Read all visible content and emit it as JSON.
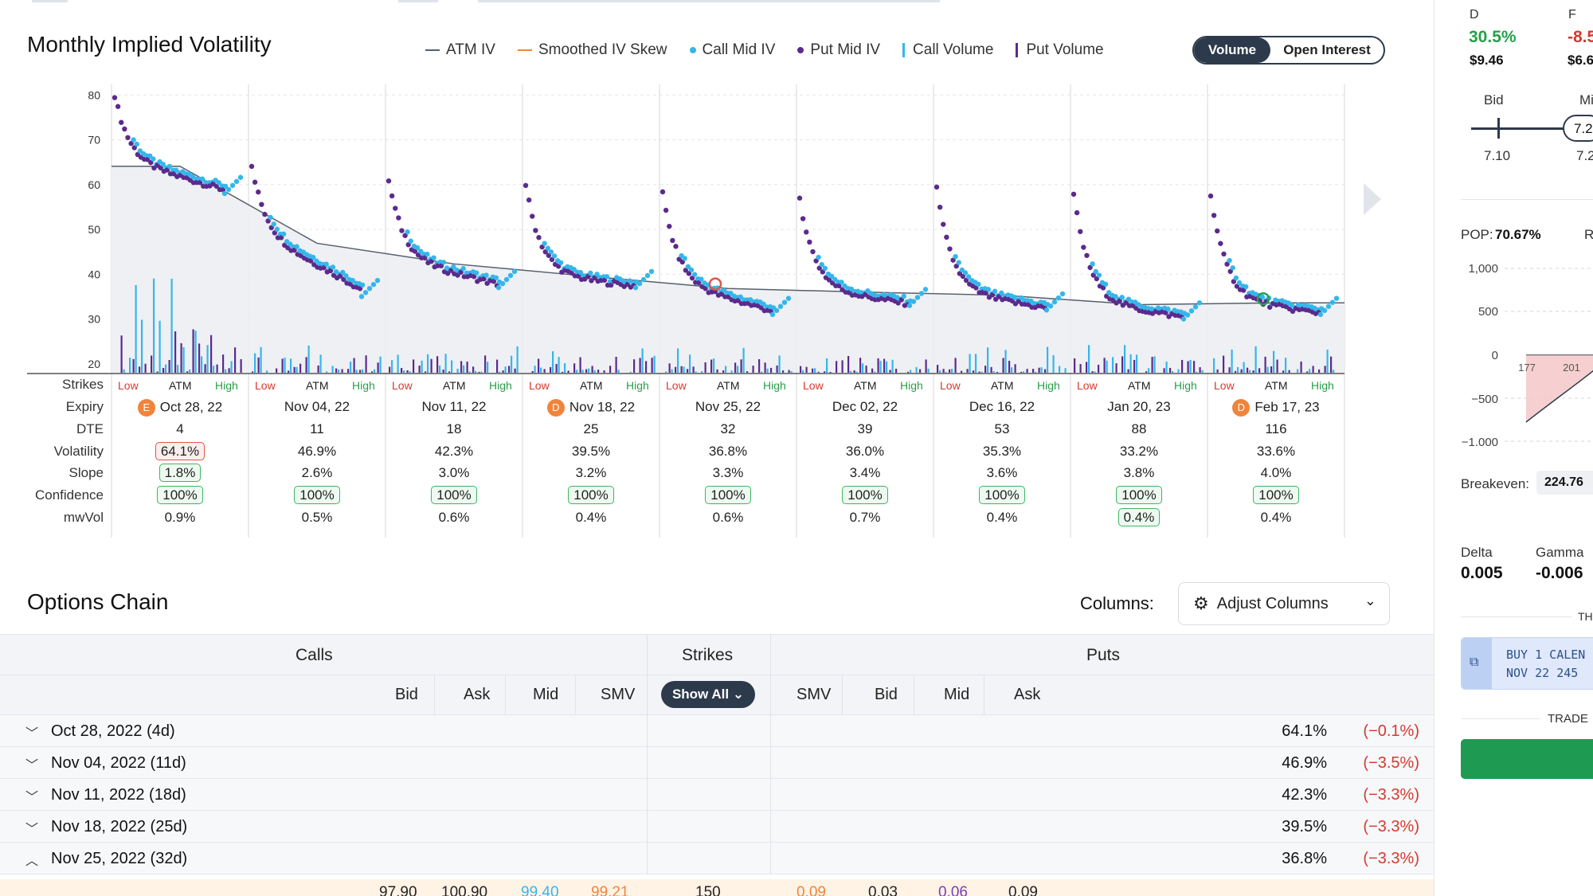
{
  "vol_chart": {
    "title": "Monthly Implied Volatility",
    "legend": [
      {
        "label": "ATM IV",
        "kind": "line",
        "color": "#555f6d"
      },
      {
        "label": "Smoothed IV Skew",
        "kind": "line",
        "color": "#f0843c"
      },
      {
        "label": "Call Mid IV",
        "kind": "dot",
        "color": "#35b6ea"
      },
      {
        "label": "Put Mid IV",
        "kind": "dot",
        "color": "#5b2a8c"
      },
      {
        "label": "Call Volume",
        "kind": "bar",
        "color": "#35b6ea"
      },
      {
        "label": "Put Volume",
        "kind": "bar",
        "color": "#5b2a8c"
      }
    ],
    "toggle": {
      "active": "Volume",
      "inactive": "Open Interest"
    },
    "row_labels": [
      "Strikes",
      "Expiry",
      "DTE",
      "Volatility",
      "Slope",
      "Confidence",
      "mwVol"
    ],
    "strike_labels": {
      "low": "Low",
      "atm": "ATM",
      "high": "High"
    }
  },
  "chart_data": {
    "type": "scatter",
    "y_ticks": [
      20,
      30,
      40,
      50,
      60,
      70,
      80
    ],
    "ylim": [
      18,
      82
    ],
    "atm_iv": [
      64.1,
      46.9,
      42.3,
      39.5,
      36.8,
      36.0,
      35.3,
      33.2,
      33.6
    ],
    "panel_start_iv": [
      80,
      64,
      61,
      60,
      58,
      57,
      59,
      58,
      58
    ],
    "panel_end_iv": [
      58,
      35,
      37,
      37,
      31,
      33,
      32,
      30,
      31
    ]
  },
  "expiries": [
    {
      "expiry": "Oct 28, 22",
      "earn": "E",
      "dte": "4",
      "vol": "64.1%",
      "vol_flag": "red",
      "slope": "1.8%",
      "slope_flag": "green",
      "conf": "100%",
      "mwvol": "0.9%",
      "mw_flag": ""
    },
    {
      "expiry": "Nov 04, 22",
      "earn": "",
      "dte": "11",
      "vol": "46.9%",
      "vol_flag": "",
      "slope": "2.6%",
      "slope_flag": "",
      "conf": "100%",
      "mwvol": "0.5%",
      "mw_flag": ""
    },
    {
      "expiry": "Nov 11, 22",
      "earn": "",
      "dte": "18",
      "vol": "42.3%",
      "vol_flag": "",
      "slope": "3.0%",
      "slope_flag": "",
      "conf": "100%",
      "mwvol": "0.6%",
      "mw_flag": ""
    },
    {
      "expiry": "Nov 18, 22",
      "earn": "D",
      "dte": "25",
      "vol": "39.5%",
      "vol_flag": "",
      "slope": "3.2%",
      "slope_flag": "",
      "conf": "100%",
      "mwvol": "0.4%",
      "mw_flag": ""
    },
    {
      "expiry": "Nov 25, 22",
      "earn": "",
      "dte": "32",
      "vol": "36.8%",
      "vol_flag": "",
      "slope": "3.3%",
      "slope_flag": "",
      "conf": "100%",
      "mwvol": "0.6%",
      "mw_flag": ""
    },
    {
      "expiry": "Dec 02, 22",
      "earn": "",
      "dte": "39",
      "vol": "36.0%",
      "vol_flag": "",
      "slope": "3.4%",
      "slope_flag": "",
      "conf": "100%",
      "mwvol": "0.7%",
      "mw_flag": ""
    },
    {
      "expiry": "Dec 16, 22",
      "earn": "",
      "dte": "53",
      "vol": "35.3%",
      "vol_flag": "",
      "slope": "3.6%",
      "slope_flag": "",
      "conf": "100%",
      "mwvol": "0.4%",
      "mw_flag": ""
    },
    {
      "expiry": "Jan 20, 23",
      "earn": "",
      "dte": "88",
      "vol": "33.2%",
      "vol_flag": "",
      "slope": "3.8%",
      "slope_flag": "",
      "conf": "100%",
      "mwvol": "0.4%",
      "mw_flag": "green"
    },
    {
      "expiry": "Feb 17, 23",
      "earn": "D",
      "dte": "116",
      "vol": "33.6%",
      "vol_flag": "",
      "slope": "4.0%",
      "slope_flag": "",
      "conf": "100%",
      "mwvol": "0.4%",
      "mw_flag": ""
    }
  ],
  "options_chain": {
    "title": "Options Chain",
    "columns_label": "Columns:",
    "adjust_label": "Adjust Columns",
    "calls_label": "Calls",
    "strikes_label": "Strikes",
    "puts_label": "Puts",
    "show_all_label": "Show All",
    "call_cols": [
      "Bid",
      "Ask",
      "Mid",
      "SMV"
    ],
    "put_cols": [
      "SMV",
      "Bid",
      "Mid",
      "Ask"
    ],
    "rows": [
      {
        "label": "Oct 28, 2022 (4d)",
        "iv": "64.1%",
        "chg": "(−0.1%)",
        "open": false
      },
      {
        "label": "Nov 04, 2022 (11d)",
        "iv": "46.9%",
        "chg": "(−3.5%)",
        "open": false
      },
      {
        "label": "Nov 11, 2022 (18d)",
        "iv": "42.3%",
        "chg": "(−3.3%)",
        "open": false
      },
      {
        "label": "Nov 18, 2022 (25d)",
        "iv": "39.5%",
        "chg": "(−3.3%)",
        "open": false
      },
      {
        "label": "Nov 25, 2022 (32d)",
        "iv": "36.8%",
        "chg": "(−3.3%)",
        "open": true
      }
    ],
    "data_row": {
      "call_bid": "97.90",
      "call_ask": "100.90",
      "call_mid": "99.40",
      "call_smv": "99.21",
      "strike": "150",
      "put_smv": "0.09",
      "put_bid": "0.03",
      "put_mid": "0.06",
      "put_ask": "0.09"
    }
  },
  "right_panel": {
    "d_label": "D",
    "d_pct": "30.5%",
    "d_price": "$9.46",
    "f_label": "F",
    "f_pct": "-8.5",
    "f_price": "$6.6",
    "bid_label": "Bid",
    "mid_label": "Mi",
    "bid_val": "7.10",
    "mid_val": "7.2",
    "mid_pill": "7.2",
    "pop_label": "POP:",
    "pop_val": "70.67%",
    "pop_right": "R",
    "y_ticks": [
      "1,000",
      "500",
      "0",
      "−500",
      "−1,000"
    ],
    "x_ticks": [
      "177",
      "201"
    ],
    "breakeven_label": "Breakeven:",
    "breakeven_val": "224.76",
    "delta_label": "Delta",
    "delta_val": "0.005",
    "gamma_label": "Gamma",
    "gamma_val": "-0.006",
    "th_label": "TH",
    "order_line1": "BUY 1 CALEN",
    "order_line2": "NOV 22 245",
    "trade_label": "TRADE"
  }
}
